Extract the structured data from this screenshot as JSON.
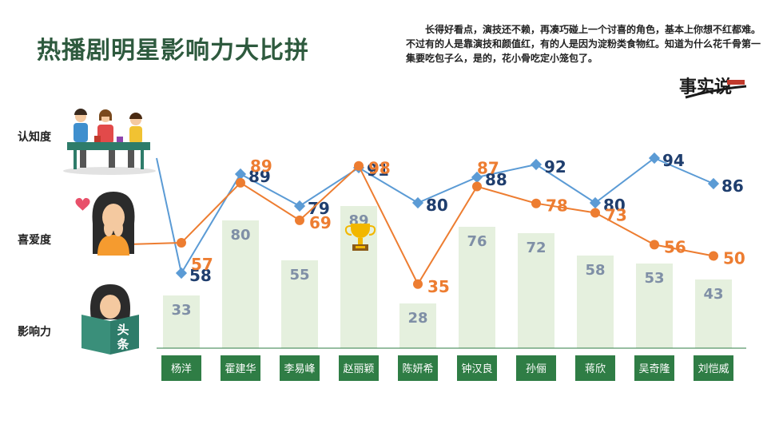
{
  "title": "热播剧明星影响力大比拼",
  "description": "长得好看点，演技还不赖，再凑巧碰上一个讨喜的角色，基本上你想不红都难。不过有的人是靠演技和颜值红，有的人是因为淀粉类食物红。知道为什么花千骨第一集要吃包子么，是的，花小骨吃定小笼包了。",
  "row_labels": {
    "awareness": "认知度",
    "likability": "喜爱度",
    "influence": "影响力"
  },
  "logo_text": "事实说",
  "book_text": "头条",
  "colors": {
    "awareness": "#5b9bd5",
    "awareness_label": "#1f3e6e",
    "likability": "#ed7d31",
    "bars": "#e5f0de",
    "bar_label": "#7f8fa6",
    "name_box": "#2f7d45"
  },
  "icons": [
    "people-at-table-icon",
    "heart-icon",
    "crying-woman-icon",
    "trophy-icon",
    "reading-girl-icon"
  ],
  "chart_data": {
    "type": "bar-line-combo",
    "categories": [
      "杨洋",
      "霍建华",
      "李易峰",
      "赵丽颖",
      "陈妍希",
      "钟汉良",
      "孙俪",
      "蒋欣",
      "吴奇隆",
      "刘恺威"
    ],
    "series": [
      {
        "name": "认知度",
        "type": "line",
        "values": [
          58,
          89,
          79,
          91,
          80,
          88,
          92,
          80,
          94,
          86
        ]
      },
      {
        "name": "喜爱度",
        "type": "line",
        "values": [
          57,
          89,
          69,
          98,
          35,
          87,
          78,
          73,
          56,
          50
        ]
      },
      {
        "name": "影响力",
        "type": "bar",
        "values": [
          33,
          80,
          55,
          89,
          28,
          76,
          72,
          58,
          53,
          43
        ]
      }
    ],
    "highlight_category": "赵丽颖"
  }
}
